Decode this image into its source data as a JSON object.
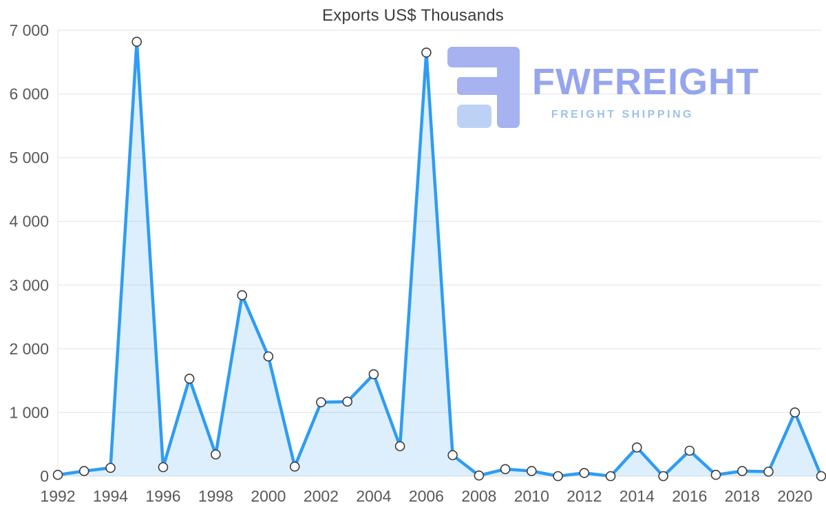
{
  "watermark": {
    "brand": "FWFREIGHT",
    "tagline": "FREIGHT SHIPPING",
    "brand_color": "#95a5ee",
    "tagline_color": "#9cc2ea",
    "mark_color": "#a6b3f0",
    "mark_color_light": "#bdd1f5"
  },
  "chart_data": {
    "type": "area",
    "title": "Exports US$ Thousands",
    "xlabel": "",
    "ylabel": "",
    "x": [
      1992,
      1993,
      1994,
      1995,
      1996,
      1997,
      1998,
      1999,
      2000,
      2001,
      2002,
      2003,
      2004,
      2005,
      2006,
      2007,
      2008,
      2009,
      2010,
      2011,
      2012,
      2013,
      2014,
      2015,
      2016,
      2017,
      2018,
      2019,
      2020,
      2021
    ],
    "values": [
      20,
      80,
      130,
      6820,
      140,
      1530,
      340,
      2840,
      1880,
      150,
      1160,
      1170,
      1600,
      470,
      6650,
      330,
      10,
      110,
      80,
      0,
      50,
      0,
      450,
      0,
      400,
      20,
      80,
      70,
      1000,
      0
    ],
    "ylim": [
      0,
      7000
    ],
    "ytick_values": [
      0,
      1000,
      2000,
      3000,
      4000,
      5000,
      6000,
      7000
    ],
    "ytick_labels": [
      "0",
      "1 000",
      "2 000",
      "3 000",
      "4 000",
      "5 000",
      "6 000",
      "7 000"
    ],
    "xtick_values": [
      1992,
      1994,
      1996,
      1998,
      2000,
      2002,
      2004,
      2006,
      2008,
      2010,
      2012,
      2014,
      2016,
      2018,
      2020
    ],
    "xtick_labels": [
      "1992",
      "1994",
      "1996",
      "1998",
      "2000",
      "2002",
      "2004",
      "2006",
      "2008",
      "2010",
      "2012",
      "2014",
      "2016",
      "2018",
      "2020"
    ],
    "grid": true,
    "legend": "none",
    "line_color": "#2e9cf4",
    "fill_color": "rgba(46,156,244,0.16)",
    "marker_fill": "#ffffff",
    "marker_stroke": "#3a3a3a",
    "grid_color": "#e3e3e3",
    "tick_color": "#585858",
    "title_color": "#3c3c3c"
  }
}
